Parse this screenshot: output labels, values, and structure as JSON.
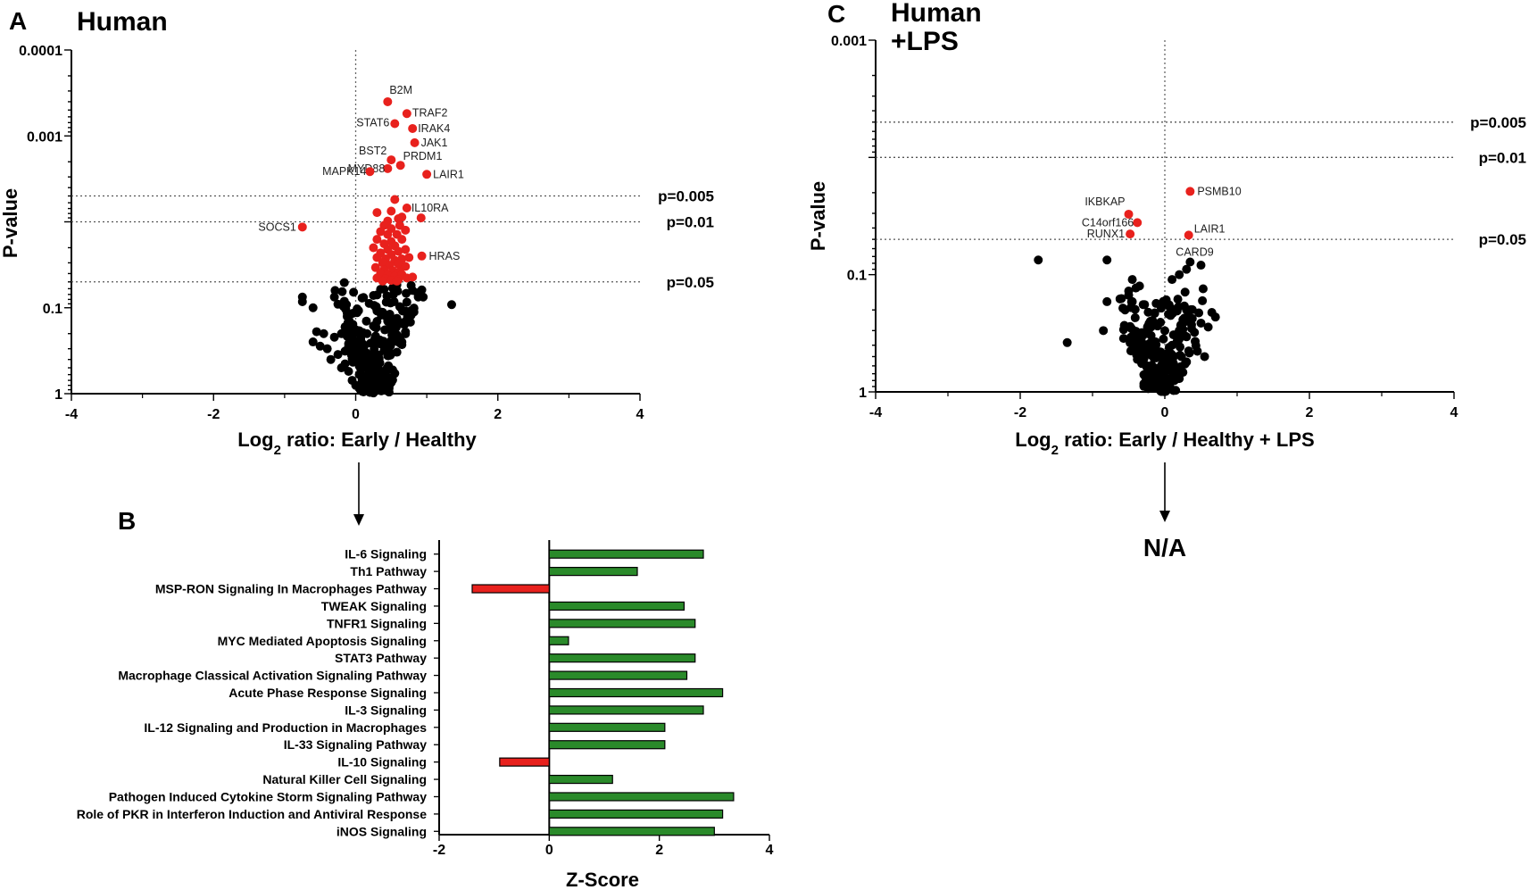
{
  "colors": {
    "significant": "#e8211d",
    "nonsignificant": "#000000",
    "bar_positive": "#2a8a2a",
    "bar_negative": "#e8211d"
  },
  "chart_data": [
    {
      "id": "A",
      "type": "scatter",
      "letter": "A",
      "title": "Human",
      "xlabel": "Log2 ratio: Early / Healthy",
      "xlabel_main": "Log",
      "xlabel_sub": "2",
      "xlabel_rest": " ratio: Early / Healthy",
      "ylabel": "P-value",
      "xlim": [
        -4,
        4
      ],
      "ylim_log10": [
        -4,
        0
      ],
      "x_ticks": [
        "-4",
        "-2",
        "0",
        "2",
        "4"
      ],
      "y_ticks": [
        {
          "label": "0.0001",
          "value": 0.0001
        },
        {
          "label": "0.001",
          "value": 0.001
        },
        {
          "label": "0.1",
          "value": 0.1
        },
        {
          "label": "1",
          "value": 1
        }
      ],
      "thresholds": [
        {
          "label": "p=0.005",
          "value": 0.005
        },
        {
          "label": "p=0.01",
          "value": 0.01
        },
        {
          "label": "p=0.05",
          "value": 0.05
        }
      ],
      "labeled_points": [
        {
          "name": "B2M",
          "x": 0.45,
          "p": 0.0004
        },
        {
          "name": "TRAF2",
          "x": 0.72,
          "p": 0.00055
        },
        {
          "name": "STAT6",
          "x": 0.55,
          "p": 0.00072
        },
        {
          "name": "IRAK4",
          "x": 0.8,
          "p": 0.00082
        },
        {
          "name": "JAK1",
          "x": 0.83,
          "p": 0.0012
        },
        {
          "name": "BST2",
          "x": 0.5,
          "p": 0.0019
        },
        {
          "name": "PRDM1",
          "x": 0.63,
          "p": 0.0022
        },
        {
          "name": "MYD88",
          "x": 0.45,
          "p": 0.0024
        },
        {
          "name": "MAPK14",
          "x": 0.2,
          "p": 0.0026
        },
        {
          "name": "LAIR1",
          "x": 1.0,
          "p": 0.0028
        },
        {
          "name": "IL10RA",
          "x": 0.72,
          "p": 0.0069
        },
        {
          "name": "SOCS1",
          "x": -0.75,
          "p": 0.0115
        },
        {
          "name": "HRAS",
          "x": 0.93,
          "p": 0.025
        }
      ],
      "other_significant_points": [
        [
          0.55,
          0.0055
        ],
        [
          0.3,
          0.0078
        ],
        [
          0.5,
          0.0075
        ],
        [
          0.92,
          0.009
        ],
        [
          0.6,
          0.0092
        ],
        [
          0.45,
          0.0098
        ],
        [
          0.65,
          0.0088
        ],
        [
          0.4,
          0.011
        ],
        [
          0.5,
          0.012
        ],
        [
          0.62,
          0.011
        ],
        [
          0.7,
          0.0125
        ],
        [
          0.35,
          0.013
        ],
        [
          0.45,
          0.014
        ],
        [
          0.58,
          0.014
        ],
        [
          0.3,
          0.016
        ],
        [
          0.5,
          0.017
        ],
        [
          0.65,
          0.016
        ],
        [
          0.4,
          0.018
        ],
        [
          0.55,
          0.019
        ],
        [
          0.25,
          0.02
        ],
        [
          0.45,
          0.021
        ],
        [
          0.6,
          0.022
        ],
        [
          0.7,
          0.021
        ],
        [
          0.35,
          0.023
        ],
        [
          0.5,
          0.024
        ],
        [
          0.3,
          0.026
        ],
        [
          0.42,
          0.027
        ],
        [
          0.55,
          0.028
        ],
        [
          0.65,
          0.027
        ],
        [
          0.75,
          0.026
        ],
        [
          0.38,
          0.03
        ],
        [
          0.48,
          0.032
        ],
        [
          0.6,
          0.031
        ],
        [
          0.7,
          0.033
        ],
        [
          0.28,
          0.034
        ],
        [
          0.4,
          0.036
        ],
        [
          0.52,
          0.037
        ],
        [
          0.62,
          0.038
        ],
        [
          0.35,
          0.04
        ],
        [
          0.45,
          0.042
        ],
        [
          0.55,
          0.043
        ],
        [
          0.65,
          0.041
        ],
        [
          0.3,
          0.045
        ],
        [
          0.42,
          0.046
        ],
        [
          0.5,
          0.048
        ],
        [
          0.6,
          0.047
        ],
        [
          0.72,
          0.045
        ],
        [
          0.38,
          0.049
        ],
        [
          0.58,
          0.049
        ],
        [
          0.8,
          0.044
        ]
      ],
      "nonsignificant_points": [
        [
          -0.75,
          0.075
        ],
        [
          -0.75,
          0.085
        ],
        [
          -0.3,
          0.075
        ],
        [
          1.35,
          0.092
        ],
        [
          0.9,
          0.068
        ],
        [
          0.95,
          0.075
        ],
        [
          -0.6,
          0.1
        ],
        [
          -0.55,
          0.19
        ],
        [
          -0.45,
          0.2
        ],
        [
          -0.3,
          0.22
        ],
        [
          -0.5,
          0.28
        ],
        [
          -0.6,
          0.25
        ],
        [
          -0.4,
          0.3
        ],
        [
          -0.2,
          0.2
        ],
        [
          -0.25,
          0.35
        ],
        [
          -0.35,
          0.4
        ],
        [
          -0.15,
          0.45
        ],
        [
          -0.1,
          0.55
        ],
        [
          -0.05,
          0.7
        ],
        [
          0.0,
          0.8
        ],
        [
          0.05,
          0.6
        ],
        [
          -0.15,
          0.32
        ],
        [
          -0.2,
          0.5
        ]
      ]
    },
    {
      "id": "C",
      "type": "scatter",
      "letter": "C",
      "title_line1": "Human",
      "title_line2": "+LPS",
      "xlabel": "Log2 ratio: Early / Healthy + LPS",
      "xlabel_main": "Log",
      "xlabel_sub": "2",
      "xlabel_rest": " ratio: Early / Healthy + LPS",
      "ylabel": "P-value",
      "xlim": [
        -4,
        4
      ],
      "ylim_log10": [
        -3,
        0
      ],
      "x_ticks": [
        "-4",
        "-2",
        "0",
        "2",
        "4"
      ],
      "y_ticks": [
        {
          "label": "0.001",
          "value": 0.001
        },
        {
          "label": "0.1",
          "value": 0.1
        },
        {
          "label": "1",
          "value": 1
        }
      ],
      "thresholds": [
        {
          "label": "p=0.005",
          "value": 0.005
        },
        {
          "label": "p=0.01",
          "value": 0.01
        },
        {
          "label": "p=0.05",
          "value": 0.05
        }
      ],
      "labeled_points": [
        {
          "name": "PSMB10",
          "x": 0.35,
          "p": 0.0195
        },
        {
          "name": "IKBKAP",
          "x": -0.5,
          "p": 0.0305
        },
        {
          "name": "C14orf166",
          "x": -0.38,
          "p": 0.036
        },
        {
          "name": "LAIR1",
          "x": 0.33,
          "p": 0.046
        },
        {
          "name": "RUNX1",
          "x": -0.48,
          "p": 0.045
        },
        {
          "name": "CARD9",
          "x": 0.3,
          "p": 0.056
        }
      ],
      "nonsignificant_points": [
        [
          -1.75,
          0.075
        ],
        [
          -0.8,
          0.075
        ],
        [
          0.35,
          0.078
        ],
        [
          0.3,
          0.09
        ],
        [
          0.5,
          0.083
        ],
        [
          0.2,
          0.1
        ],
        [
          0.1,
          0.11
        ],
        [
          -0.45,
          0.11
        ],
        [
          -0.4,
          0.13
        ],
        [
          -0.35,
          0.125
        ],
        [
          -0.5,
          0.15
        ],
        [
          -0.6,
          0.16
        ],
        [
          -0.45,
          0.17
        ],
        [
          -0.55,
          0.2
        ],
        [
          0.7,
          0.23
        ],
        [
          0.65,
          0.21
        ],
        [
          -0.8,
          0.17
        ],
        [
          -0.85,
          0.3
        ],
        [
          -1.35,
          0.38
        ],
        [
          0.3,
          0.2
        ],
        [
          -0.3,
          0.18
        ],
        [
          0.6,
          0.28
        ],
        [
          -0.2,
          0.25
        ],
        [
          0.2,
          0.3
        ],
        [
          0.55,
          0.5
        ],
        [
          0.45,
          0.45
        ],
        [
          0.1,
          0.4
        ]
      ]
    },
    {
      "id": "B",
      "type": "bar",
      "orientation": "horizontal",
      "letter": "B",
      "xlabel": "Z-Score",
      "xlim": [
        -2,
        4
      ],
      "x_ticks": [
        "-2",
        "0",
        "2",
        "4"
      ],
      "categories": [
        "IL-6 Signaling",
        "Th1 Pathway",
        "MSP-RON Signaling In Macrophages Pathway",
        "TWEAK Signaling",
        "TNFR1 Signaling",
        "MYC Mediated Apoptosis Signaling",
        "STAT3 Pathway",
        "Macrophage Classical Activation Signaling Pathway",
        "Acute Phase Response Signaling",
        "IL-3 Signaling",
        "IL-12 Signaling and Production in Macrophages",
        "IL-33 Signaling Pathway",
        "IL-10 Signaling",
        "Natural Killer Cell Signaling",
        "Pathogen Induced Cytokine Storm Signaling Pathway",
        "Role of PKR in Interferon Induction and Antiviral Response",
        "iNOS Signaling"
      ],
      "values": [
        2.8,
        1.6,
        -1.4,
        2.45,
        2.65,
        0.35,
        2.65,
        2.5,
        3.15,
        2.8,
        2.1,
        2.1,
        -0.9,
        1.15,
        3.35,
        3.15,
        3.0
      ]
    }
  ],
  "annotations": {
    "na_text": "N/A"
  }
}
